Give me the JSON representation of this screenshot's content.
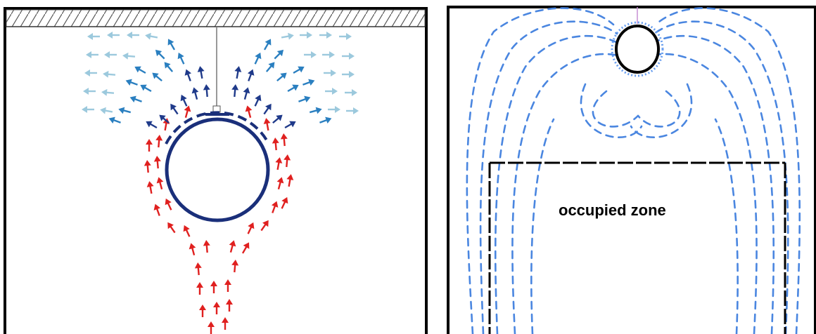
{
  "colors": {
    "cold_dark": "#1f3a8a",
    "cold_mid": "#2a7fc0",
    "cold_light": "#9cc9dd",
    "warm": "#e0201f",
    "cylinder": "#1a2f7a",
    "streamline": "#4a86e0",
    "frame": "#000000"
  },
  "right_panel": {
    "zone_label": "occupied zone"
  }
}
